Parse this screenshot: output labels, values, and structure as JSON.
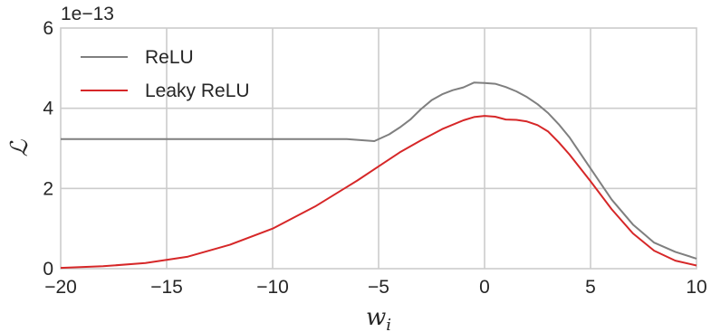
{
  "chart_data": {
    "type": "line",
    "xlabel": "w",
    "xlabel_sub": "i",
    "ylabel": "ℒ",
    "y_offset_label": "1e−13",
    "xlim": [
      -20,
      10
    ],
    "ylim": [
      0,
      6
    ],
    "x_ticks": [
      -20,
      -15,
      -10,
      -5,
      0,
      5,
      10
    ],
    "x_tick_labels": [
      "−20",
      "−15",
      "−10",
      "−5",
      "0",
      "5",
      "10"
    ],
    "y_ticks": [
      0,
      2,
      4,
      6
    ],
    "y_tick_labels": [
      "0",
      "2",
      "4",
      "6"
    ],
    "grid": true,
    "legend_position": "upper-left",
    "series": [
      {
        "name": "ReLU",
        "color": "#7f7f7f",
        "x": [
          -20,
          -15,
          -10,
          -6.5,
          -5.2,
          -4.5,
          -4,
          -3.5,
          -3,
          -2.5,
          -2,
          -1.5,
          -1,
          -0.5,
          0,
          0.5,
          1,
          1.5,
          2,
          2.5,
          3,
          3.5,
          4,
          5,
          6,
          7,
          8,
          9,
          10
        ],
        "y": [
          3.23,
          3.23,
          3.23,
          3.23,
          3.18,
          3.35,
          3.52,
          3.72,
          3.98,
          4.2,
          4.35,
          4.45,
          4.52,
          4.64,
          4.63,
          4.61,
          4.53,
          4.42,
          4.28,
          4.1,
          3.88,
          3.6,
          3.28,
          2.5,
          1.72,
          1.1,
          0.65,
          0.42,
          0.25
        ]
      },
      {
        "name": "Leaky ReLU",
        "color": "#d62728",
        "x": [
          -20,
          -18,
          -16,
          -14,
          -12,
          -10,
          -8,
          -6,
          -5,
          -4,
          -3,
          -2,
          -1,
          -0.5,
          0,
          0.5,
          1,
          1.5,
          2,
          2.5,
          3,
          3.5,
          4,
          5,
          6,
          7,
          8,
          9,
          10
        ],
        "y": [
          0.02,
          0.06,
          0.14,
          0.3,
          0.6,
          1.0,
          1.55,
          2.2,
          2.55,
          2.9,
          3.2,
          3.48,
          3.7,
          3.78,
          3.81,
          3.79,
          3.72,
          3.71,
          3.67,
          3.58,
          3.42,
          3.15,
          2.85,
          2.18,
          1.48,
          0.88,
          0.45,
          0.2,
          0.08
        ]
      }
    ]
  }
}
